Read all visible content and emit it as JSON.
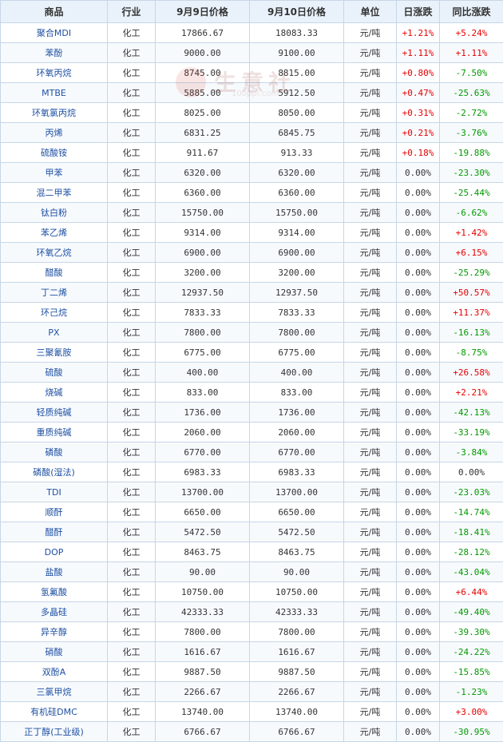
{
  "headers": {
    "name": "商品",
    "industry": "行业",
    "price_prev": "9月9日价格",
    "price_curr": "9月10日价格",
    "unit": "单位",
    "daily_change": "日涨跌",
    "yoy_change": "同比涨跌"
  },
  "watermark": {
    "text": "生意社",
    "url": "100ppi.com"
  },
  "colors": {
    "up": "#e60000",
    "down": "#009900",
    "name": "#1e50a2",
    "header_bg": "#e9f2fb",
    "border": "#c6d6e6"
  },
  "rows": [
    {
      "name": "聚合MDI",
      "industry": "化工",
      "p1": "17866.67",
      "p2": "18083.33",
      "unit": "元/吨",
      "daily": "+1.21%",
      "yoy": "+5.24%"
    },
    {
      "name": "苯酚",
      "industry": "化工",
      "p1": "9000.00",
      "p2": "9100.00",
      "unit": "元/吨",
      "daily": "+1.11%",
      "yoy": "+1.11%"
    },
    {
      "name": "环氧丙烷",
      "industry": "化工",
      "p1": "8745.00",
      "p2": "8815.00",
      "unit": "元/吨",
      "daily": "+0.80%",
      "yoy": "-7.50%"
    },
    {
      "name": "MTBE",
      "industry": "化工",
      "p1": "5885.00",
      "p2": "5912.50",
      "unit": "元/吨",
      "daily": "+0.47%",
      "yoy": "-25.63%"
    },
    {
      "name": "环氧氯丙烷",
      "industry": "化工",
      "p1": "8025.00",
      "p2": "8050.00",
      "unit": "元/吨",
      "daily": "+0.31%",
      "yoy": "-2.72%"
    },
    {
      "name": "丙烯",
      "industry": "化工",
      "p1": "6831.25",
      "p2": "6845.75",
      "unit": "元/吨",
      "daily": "+0.21%",
      "yoy": "-3.76%"
    },
    {
      "name": "硫酸铵",
      "industry": "化工",
      "p1": "911.67",
      "p2": "913.33",
      "unit": "元/吨",
      "daily": "+0.18%",
      "yoy": "-19.88%"
    },
    {
      "name": "甲苯",
      "industry": "化工",
      "p1": "6320.00",
      "p2": "6320.00",
      "unit": "元/吨",
      "daily": "0.00%",
      "yoy": "-23.30%"
    },
    {
      "name": "混二甲苯",
      "industry": "化工",
      "p1": "6360.00",
      "p2": "6360.00",
      "unit": "元/吨",
      "daily": "0.00%",
      "yoy": "-25.44%"
    },
    {
      "name": "钛白粉",
      "industry": "化工",
      "p1": "15750.00",
      "p2": "15750.00",
      "unit": "元/吨",
      "daily": "0.00%",
      "yoy": "-6.62%"
    },
    {
      "name": "苯乙烯",
      "industry": "化工",
      "p1": "9314.00",
      "p2": "9314.00",
      "unit": "元/吨",
      "daily": "0.00%",
      "yoy": "+1.42%"
    },
    {
      "name": "环氧乙烷",
      "industry": "化工",
      "p1": "6900.00",
      "p2": "6900.00",
      "unit": "元/吨",
      "daily": "0.00%",
      "yoy": "+6.15%"
    },
    {
      "name": "醋酸",
      "industry": "化工",
      "p1": "3200.00",
      "p2": "3200.00",
      "unit": "元/吨",
      "daily": "0.00%",
      "yoy": "-25.29%"
    },
    {
      "name": "丁二烯",
      "industry": "化工",
      "p1": "12937.50",
      "p2": "12937.50",
      "unit": "元/吨",
      "daily": "0.00%",
      "yoy": "+50.57%"
    },
    {
      "name": "环己烷",
      "industry": "化工",
      "p1": "7833.33",
      "p2": "7833.33",
      "unit": "元/吨",
      "daily": "0.00%",
      "yoy": "+11.37%"
    },
    {
      "name": "PX",
      "industry": "化工",
      "p1": "7800.00",
      "p2": "7800.00",
      "unit": "元/吨",
      "daily": "0.00%",
      "yoy": "-16.13%"
    },
    {
      "name": "三聚氰胺",
      "industry": "化工",
      "p1": "6775.00",
      "p2": "6775.00",
      "unit": "元/吨",
      "daily": "0.00%",
      "yoy": "-8.75%"
    },
    {
      "name": "硫酸",
      "industry": "化工",
      "p1": "400.00",
      "p2": "400.00",
      "unit": "元/吨",
      "daily": "0.00%",
      "yoy": "+26.58%"
    },
    {
      "name": "烧碱",
      "industry": "化工",
      "p1": "833.00",
      "p2": "833.00",
      "unit": "元/吨",
      "daily": "0.00%",
      "yoy": "+2.21%"
    },
    {
      "name": "轻质纯碱",
      "industry": "化工",
      "p1": "1736.00",
      "p2": "1736.00",
      "unit": "元/吨",
      "daily": "0.00%",
      "yoy": "-42.13%"
    },
    {
      "name": "重质纯碱",
      "industry": "化工",
      "p1": "2060.00",
      "p2": "2060.00",
      "unit": "元/吨",
      "daily": "0.00%",
      "yoy": "-33.19%"
    },
    {
      "name": "磷酸",
      "industry": "化工",
      "p1": "6770.00",
      "p2": "6770.00",
      "unit": "元/吨",
      "daily": "0.00%",
      "yoy": "-3.84%"
    },
    {
      "name": "磷酸(湿法)",
      "industry": "化工",
      "p1": "6983.33",
      "p2": "6983.33",
      "unit": "元/吨",
      "daily": "0.00%",
      "yoy": "0.00%"
    },
    {
      "name": "TDI",
      "industry": "化工",
      "p1": "13700.00",
      "p2": "13700.00",
      "unit": "元/吨",
      "daily": "0.00%",
      "yoy": "-23.03%"
    },
    {
      "name": "顺酐",
      "industry": "化工",
      "p1": "6650.00",
      "p2": "6650.00",
      "unit": "元/吨",
      "daily": "0.00%",
      "yoy": "-14.74%"
    },
    {
      "name": "醋酐",
      "industry": "化工",
      "p1": "5472.50",
      "p2": "5472.50",
      "unit": "元/吨",
      "daily": "0.00%",
      "yoy": "-18.41%"
    },
    {
      "name": "DOP",
      "industry": "化工",
      "p1": "8463.75",
      "p2": "8463.75",
      "unit": "元/吨",
      "daily": "0.00%",
      "yoy": "-28.12%"
    },
    {
      "name": "盐酸",
      "industry": "化工",
      "p1": "90.00",
      "p2": "90.00",
      "unit": "元/吨",
      "daily": "0.00%",
      "yoy": "-43.04%"
    },
    {
      "name": "氢氟酸",
      "industry": "化工",
      "p1": "10750.00",
      "p2": "10750.00",
      "unit": "元/吨",
      "daily": "0.00%",
      "yoy": "+6.44%"
    },
    {
      "name": "多晶硅",
      "industry": "化工",
      "p1": "42333.33",
      "p2": "42333.33",
      "unit": "元/吨",
      "daily": "0.00%",
      "yoy": "-49.40%"
    },
    {
      "name": "异辛醇",
      "industry": "化工",
      "p1": "7800.00",
      "p2": "7800.00",
      "unit": "元/吨",
      "daily": "0.00%",
      "yoy": "-39.30%"
    },
    {
      "name": "硝酸",
      "industry": "化工",
      "p1": "1616.67",
      "p2": "1616.67",
      "unit": "元/吨",
      "daily": "0.00%",
      "yoy": "-24.22%"
    },
    {
      "name": "双酚A",
      "industry": "化工",
      "p1": "9887.50",
      "p2": "9887.50",
      "unit": "元/吨",
      "daily": "0.00%",
      "yoy": "-15.85%"
    },
    {
      "name": "三氯甲烷",
      "industry": "化工",
      "p1": "2266.67",
      "p2": "2266.67",
      "unit": "元/吨",
      "daily": "0.00%",
      "yoy": "-1.23%"
    },
    {
      "name": "有机硅DMC",
      "industry": "化工",
      "p1": "13740.00",
      "p2": "13740.00",
      "unit": "元/吨",
      "daily": "0.00%",
      "yoy": "+3.00%"
    },
    {
      "name": "正丁醇(工业级)",
      "industry": "化工",
      "p1": "6766.67",
      "p2": "6766.67",
      "unit": "元/吨",
      "daily": "0.00%",
      "yoy": "-30.95%"
    }
  ]
}
